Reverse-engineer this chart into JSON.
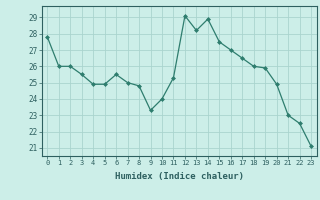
{
  "x": [
    0,
    1,
    2,
    3,
    4,
    5,
    6,
    7,
    8,
    9,
    10,
    11,
    12,
    13,
    14,
    15,
    16,
    17,
    18,
    19,
    20,
    21,
    22,
    23
  ],
  "y": [
    27.8,
    26.0,
    26.0,
    25.5,
    24.9,
    24.9,
    25.5,
    25.0,
    24.8,
    23.3,
    24.0,
    25.3,
    29.1,
    28.2,
    28.9,
    27.5,
    27.0,
    26.5,
    26.0,
    25.9,
    24.9,
    23.0,
    22.5,
    21.1
  ],
  "line_color": "#2e7d6e",
  "marker": "D",
  "marker_size": 2.0,
  "bg_color": "#cceee8",
  "grid_color": "#aad4ce",
  "xlabel": "Humidex (Indice chaleur)",
  "ylabel_ticks": [
    21,
    22,
    23,
    24,
    25,
    26,
    27,
    28,
    29
  ],
  "ylim": [
    20.5,
    29.7
  ],
  "xlim": [
    -0.5,
    23.5
  ]
}
